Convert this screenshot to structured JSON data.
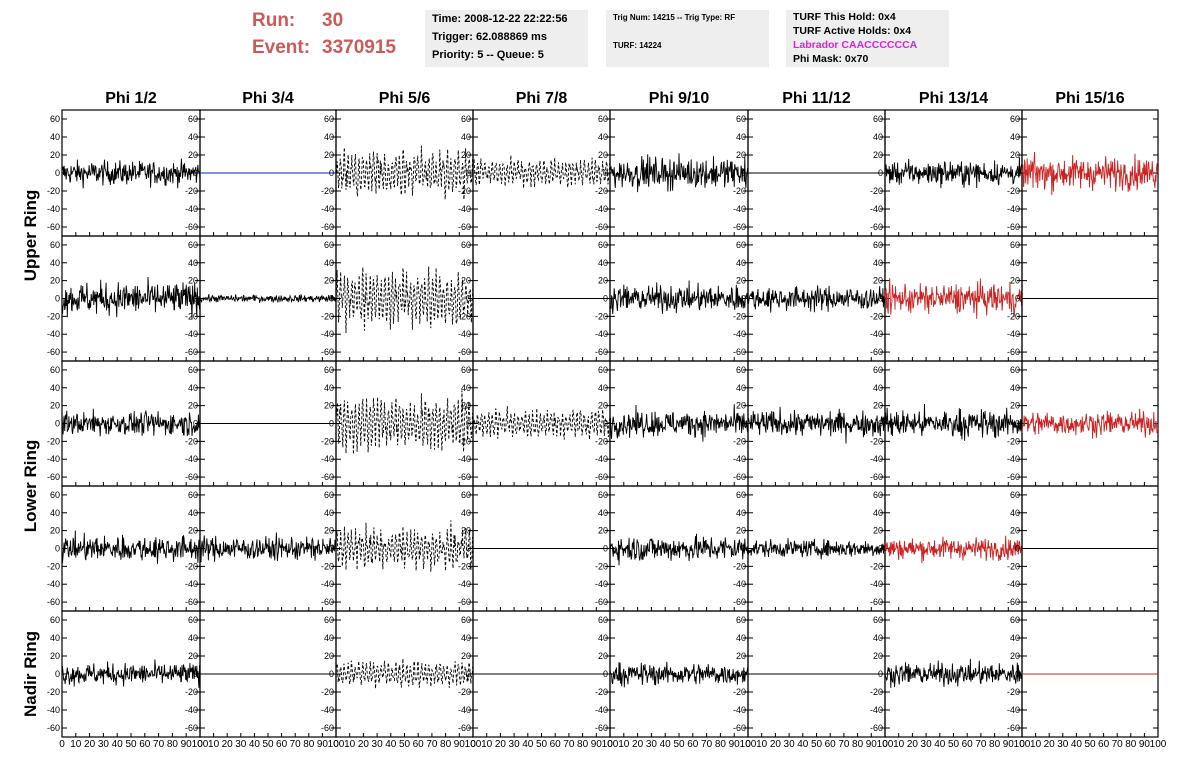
{
  "header": {
    "run_label": "Run:",
    "run_value": "30",
    "event_label": "Event:",
    "event_value": "3370915",
    "time": "Time: 2008-12-22 22:22:56",
    "trigger": "Trigger: 62.088869 ms",
    "priority": "Priority: 5 -- Queue: 5",
    "trig_num": "Trig Num: 14215 -- Trig Type: RF",
    "turf": "TURF: 14224",
    "turf_hold": "TURF This Hold: 0x4",
    "turf_active": "TURF Active Holds: 0x4",
    "labrador": "Labrador CAACCCCCCA",
    "phi_mask": "Phi Mask: 0x70",
    "labrador_color": "#e020e0",
    "run_color": "#cd5a5a"
  },
  "chart_data": {
    "type": "line",
    "columns": [
      "Phi 1/2",
      "Phi 3/4",
      "Phi 5/6",
      "Phi 7/8",
      "Phi 9/10",
      "Phi 11/12",
      "Phi 13/14",
      "Phi 15/16"
    ],
    "rows": [
      "Upper Ring",
      "Upper Ring",
      "Lower Ring",
      "Lower Ring",
      "Nadir Ring"
    ],
    "row_labels": [
      {
        "label": "Upper Ring",
        "rows": [
          0,
          1
        ]
      },
      {
        "label": "Lower Ring",
        "rows": [
          2,
          3
        ]
      },
      {
        "label": "Nadir Ring",
        "rows": [
          4
        ]
      }
    ],
    "ylim": [
      -70,
      70
    ],
    "xlim": [
      0,
      100
    ],
    "yticks": [
      -60,
      -40,
      -20,
      0,
      20,
      40,
      60
    ],
    "ytick_labels": [
      "-60",
      "-40",
      "-20",
      "0",
      "20",
      "40",
      "60"
    ],
    "xticks": [
      0,
      10,
      20,
      30,
      40,
      50,
      60,
      70,
      80,
      90,
      100
    ],
    "xtick_labels": [
      "0",
      "10",
      "20",
      "30",
      "40",
      "50",
      "60",
      "70",
      "80",
      "90",
      "100"
    ],
    "series_colors": {
      "black": "#000000",
      "red": "#cc2222",
      "blue": "#1a1acc"
    },
    "traces": [
      [
        "noise",
        "flat",
        "dash",
        "dash",
        "noise",
        "flat",
        "noise",
        "noise"
      ],
      [
        "noise",
        "low",
        "dash",
        "flat",
        "noise",
        "noise",
        "noise",
        "flat"
      ],
      [
        "noise",
        "flat",
        "dash",
        "dash",
        "noise",
        "noise",
        "noise",
        "noise"
      ],
      [
        "noise",
        "noise",
        "dash",
        "flat",
        "noise",
        "noise",
        "noise",
        "flat"
      ],
      [
        "noise",
        "flat",
        "dash",
        "flat",
        "noise",
        "flat",
        "noise",
        "flat"
      ]
    ],
    "trace_colors": [
      [
        "black",
        "blue",
        "black",
        "black",
        "black",
        "black",
        "black",
        "red"
      ],
      [
        "black",
        "black",
        "black",
        "black",
        "black",
        "black",
        "red",
        "black"
      ],
      [
        "black",
        "black",
        "black",
        "black",
        "black",
        "black",
        "black",
        "red"
      ],
      [
        "black",
        "black",
        "black",
        "black",
        "black",
        "black",
        "red",
        "black"
      ],
      [
        "black",
        "black",
        "black",
        "black",
        "black",
        "black",
        "black",
        "red"
      ]
    ],
    "amplitude_rms": [
      [
        11,
        0,
        16,
        10,
        14,
        0,
        11,
        15
      ],
      [
        15,
        2,
        20,
        0,
        12,
        11,
        14,
        0
      ],
      [
        11,
        0,
        20,
        11,
        12,
        12,
        13,
        11
      ],
      [
        12,
        11,
        15,
        0,
        12,
        8,
        10,
        0
      ],
      [
        10,
        0,
        9,
        0,
        10,
        0,
        10,
        0
      ]
    ]
  }
}
